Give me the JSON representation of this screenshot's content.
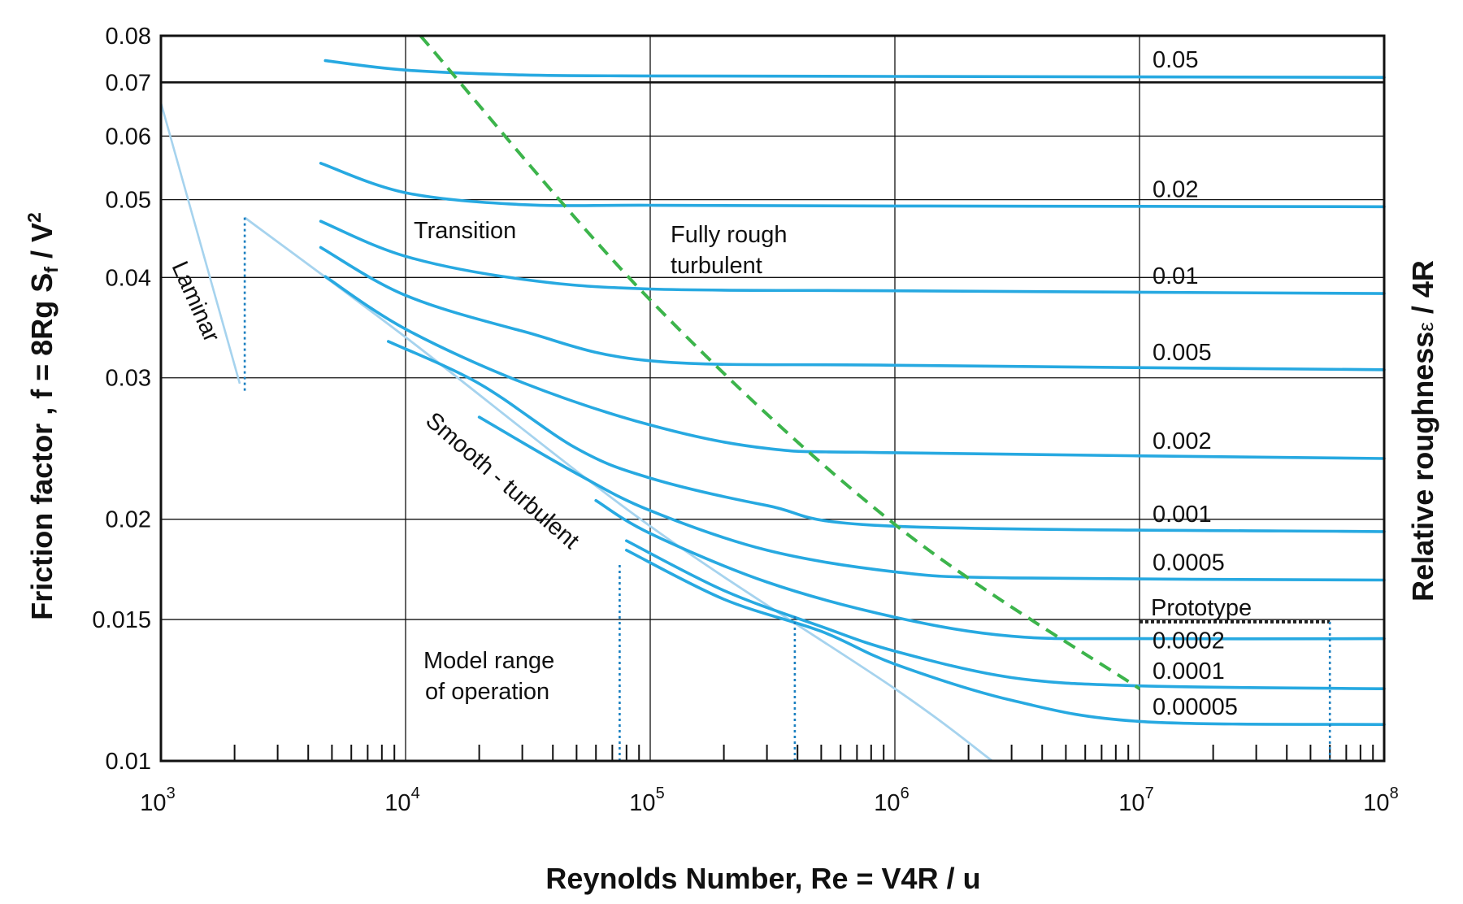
{
  "chart_data": {
    "type": "line",
    "title": "",
    "xlabel": "Reynolds Number, Re = V4R / u",
    "ylabel": "Friction factor , f = 8Rg S",
    "ylabel_sub": "f",
    "ylabel_tail": " / V",
    "ylabel_sup": "2",
    "ylabel_right": "Relative roughness",
    "ylabel_right_symbol": "ε",
    "ylabel_right_tail": "  / 4R",
    "x_scale": "log",
    "y_scale": "log",
    "xlim": [
      1000,
      100000000
    ],
    "ylim": [
      0.01,
      0.08
    ],
    "x_ticks": [
      {
        "value": 1000,
        "base": "10",
        "exp": "3"
      },
      {
        "value": 10000,
        "base": "10",
        "exp": "4"
      },
      {
        "value": 100000,
        "base": "10",
        "exp": "5"
      },
      {
        "value": 1000000,
        "base": "10",
        "exp": "6"
      },
      {
        "value": 10000000,
        "base": "10",
        "exp": "7"
      },
      {
        "value": 100000000,
        "base": "10",
        "exp": "8"
      }
    ],
    "y_ticks": [
      {
        "value": 0.01,
        "label": "0.01"
      },
      {
        "value": 0.015,
        "label": "0.015"
      },
      {
        "value": 0.02,
        "label": "0.02"
      },
      {
        "value": 0.03,
        "label": "0.03"
      },
      {
        "value": 0.04,
        "label": "0.04"
      },
      {
        "value": 0.05,
        "label": "0.05"
      },
      {
        "value": 0.06,
        "label": "0.06"
      },
      {
        "value": 0.07,
        "label": "0.07"
      },
      {
        "value": 0.08,
        "label": "0.08"
      }
    ],
    "grid": true,
    "colors": {
      "roughness": "#27a9e1",
      "smooth": "#a6d3ee",
      "laminar": "#a6d3ee",
      "boundary": "#3cb44b",
      "marker": "#1a7fc0",
      "prototype": "#222222"
    },
    "series": [
      {
        "name": "0.05",
        "points": [
          [
            4700,
            0.0745
          ],
          [
            10000,
            0.0725
          ],
          [
            30000,
            0.0715
          ],
          [
            100000,
            0.0713
          ],
          [
            1000000,
            0.0712
          ],
          [
            100000000,
            0.071
          ]
        ]
      },
      {
        "name": "0.02",
        "points": [
          [
            4500,
            0.0555
          ],
          [
            10000,
            0.051
          ],
          [
            30000,
            0.0493
          ],
          [
            100000,
            0.0492
          ],
          [
            1000000,
            0.0491
          ],
          [
            100000000,
            0.049
          ]
        ]
      },
      {
        "name": "0.01",
        "points": [
          [
            4500,
            0.047
          ],
          [
            10000,
            0.0425
          ],
          [
            30000,
            0.0398
          ],
          [
            100000,
            0.0387
          ],
          [
            1000000,
            0.0385
          ],
          [
            100000000,
            0.0382
          ]
        ]
      },
      {
        "name": "0.005",
        "points": [
          [
            4500,
            0.0436
          ],
          [
            10000,
            0.038
          ],
          [
            30000,
            0.0343
          ],
          [
            100000,
            0.0315
          ],
          [
            1000000,
            0.0311
          ],
          [
            100000000,
            0.0307
          ]
        ]
      },
      {
        "name": "0.002",
        "points": [
          [
            4700,
            0.0401
          ],
          [
            10000,
            0.0345
          ],
          [
            30000,
            0.0296
          ],
          [
            100000,
            0.0262
          ],
          [
            300000,
            0.0245
          ],
          [
            1000000,
            0.0242
          ],
          [
            100000000,
            0.0238
          ]
        ]
      },
      {
        "name": "0.001",
        "points": [
          [
            8500,
            0.0333
          ],
          [
            20000,
            0.0295
          ],
          [
            50000,
            0.0245
          ],
          [
            100000,
            0.0225
          ],
          [
            300000,
            0.0208
          ],
          [
            1000000,
            0.0196
          ],
          [
            100000000,
            0.0193
          ]
        ]
      },
      {
        "name": "0.0005",
        "points": [
          [
            20000,
            0.0268
          ],
          [
            50000,
            0.0228
          ],
          [
            100000,
            0.0205
          ],
          [
            300000,
            0.0183
          ],
          [
            1000000,
            0.0172
          ],
          [
            3000000,
            0.0169
          ],
          [
            100000000,
            0.0168
          ]
        ]
      },
      {
        "name": "0.0002",
        "points": [
          [
            60000,
            0.0211
          ],
          [
            100000,
            0.0192
          ],
          [
            300000,
            0.0167
          ],
          [
            1000000,
            0.0151
          ],
          [
            3000000,
            0.0143
          ],
          [
            10000000,
            0.0142
          ],
          [
            100000000,
            0.0142
          ]
        ]
      },
      {
        "name": "0.0001",
        "points": [
          [
            80000,
            0.0188
          ],
          [
            200000,
            0.0163
          ],
          [
            500000,
            0.0147
          ],
          [
            1000000,
            0.0137
          ],
          [
            3000000,
            0.0127
          ],
          [
            10000000,
            0.0124
          ],
          [
            100000000,
            0.0123
          ]
        ]
      },
      {
        "name": "0.00005",
        "points": [
          [
            80000,
            0.0183
          ],
          [
            200000,
            0.0159
          ],
          [
            500000,
            0.0145
          ],
          [
            1000000,
            0.0132
          ],
          [
            3000000,
            0.0119
          ],
          [
            10000000,
            0.0112
          ],
          [
            100000000,
            0.0111
          ]
        ]
      }
    ],
    "smooth_turbulent": {
      "points": [
        [
          2200,
          0.0475
        ],
        [
          10000,
          0.0337
        ],
        [
          100000,
          0.0196
        ],
        [
          1000000,
          0.0123
        ],
        [
          2500000,
          0.01
        ]
      ]
    },
    "laminar": {
      "points": [
        [
          1000,
          0.066
        ],
        [
          2100,
          0.0295
        ]
      ]
    },
    "laminar_marker": {
      "points": [
        [
          2200,
          0.0475
        ],
        [
          2200,
          0.0288
        ]
      ]
    },
    "fully_rough_boundary": {
      "points": [
        [
          11500,
          0.08
        ],
        [
          100000,
          0.0375
        ],
        [
          1000000,
          0.0197
        ],
        [
          10000000,
          0.0123
        ]
      ]
    },
    "model_range_markers": [
      {
        "points": [
          [
            75000,
            0.01
          ],
          [
            75000,
            0.0177
          ]
        ]
      },
      {
        "points": [
          [
            390000,
            0.01
          ],
          [
            390000,
            0.0152
          ]
        ]
      }
    ],
    "prototype_range": {
      "points": [
        [
          10000000,
          0.0149
        ],
        [
          60000000,
          0.0149
        ]
      ],
      "right_drop": [
        [
          60000000,
          0.0149
        ],
        [
          60000000,
          0.01
        ]
      ]
    },
    "labels": {
      "transition": "Transition",
      "fully_rough_1": "Fully rough",
      "fully_rough_2": "turbulent",
      "laminar": "Laminar",
      "smooth_turbulent": "Smooth - turbulent",
      "model_range_1": "Model range",
      "model_range_2": "of operation",
      "prototype": "Prototype"
    }
  }
}
